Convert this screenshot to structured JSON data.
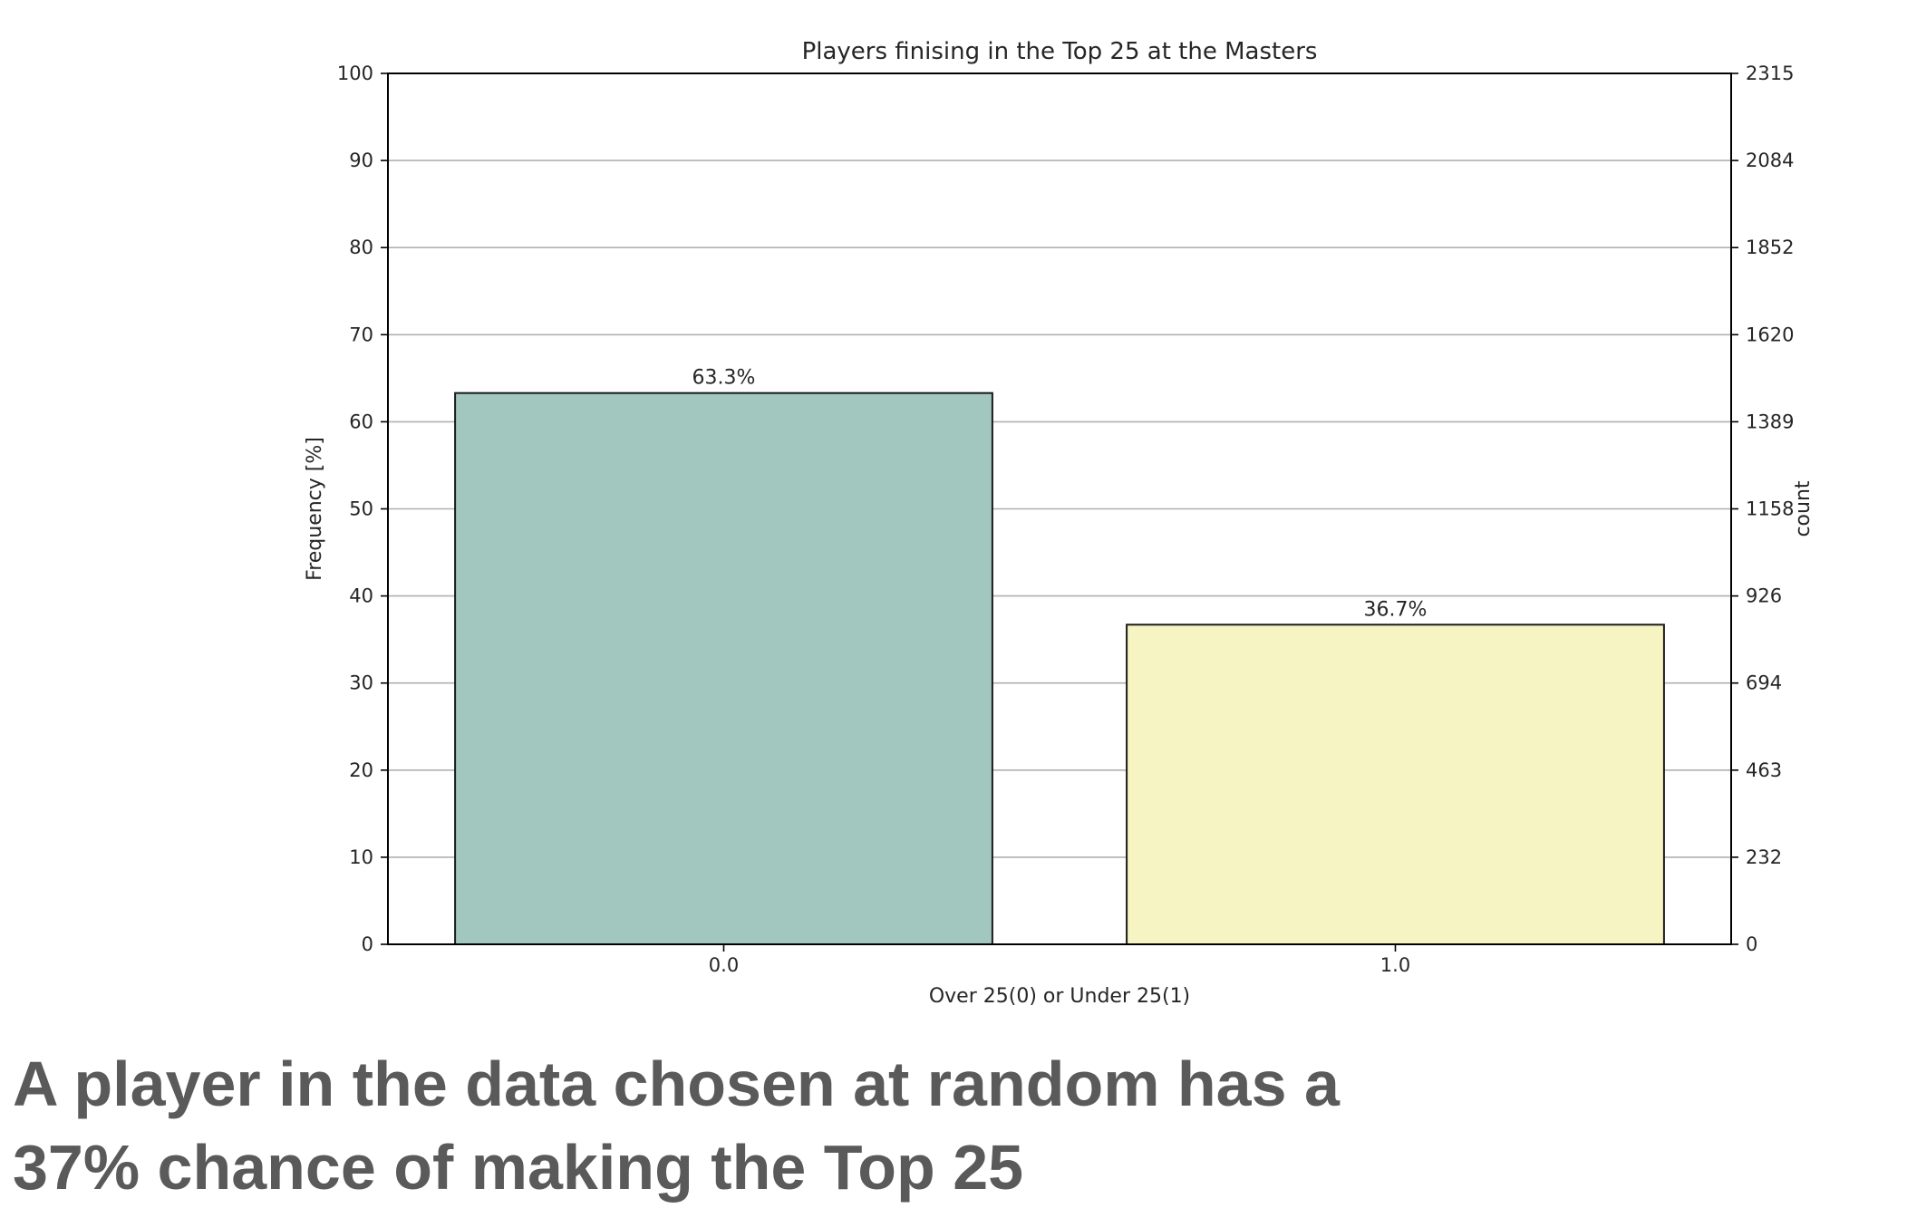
{
  "chart_data": {
    "type": "bar",
    "title": "Players finising in the Top 25 at the Masters",
    "xlabel": "Over 25(0) or Under 25(1)",
    "ylabel": "Frequency [%]",
    "ylabel_right": "count",
    "categories": [
      "0.0",
      "1.0"
    ],
    "values": [
      63.3,
      36.7
    ],
    "value_labels": [
      "63.3%",
      "36.7%"
    ],
    "bar_colors": [
      "#a1c7bf",
      "#f6f4c2"
    ],
    "ylim": [
      0,
      100
    ],
    "yticks": [
      0,
      10,
      20,
      30,
      40,
      50,
      60,
      70,
      80,
      90,
      100
    ],
    "ytick_labels": [
      "0",
      "10",
      "20",
      "30",
      "40",
      "50",
      "60",
      "70",
      "80",
      "90",
      "100"
    ],
    "ytick_labels_right": [
      "0",
      "232",
      "463",
      "694",
      "926",
      "1158",
      "1389",
      "1620",
      "1852",
      "2084",
      "2315"
    ],
    "grid": true
  },
  "caption": {
    "line1": "A player in the data chosen at random has a",
    "line2": "37% chance of making the Top 25"
  }
}
